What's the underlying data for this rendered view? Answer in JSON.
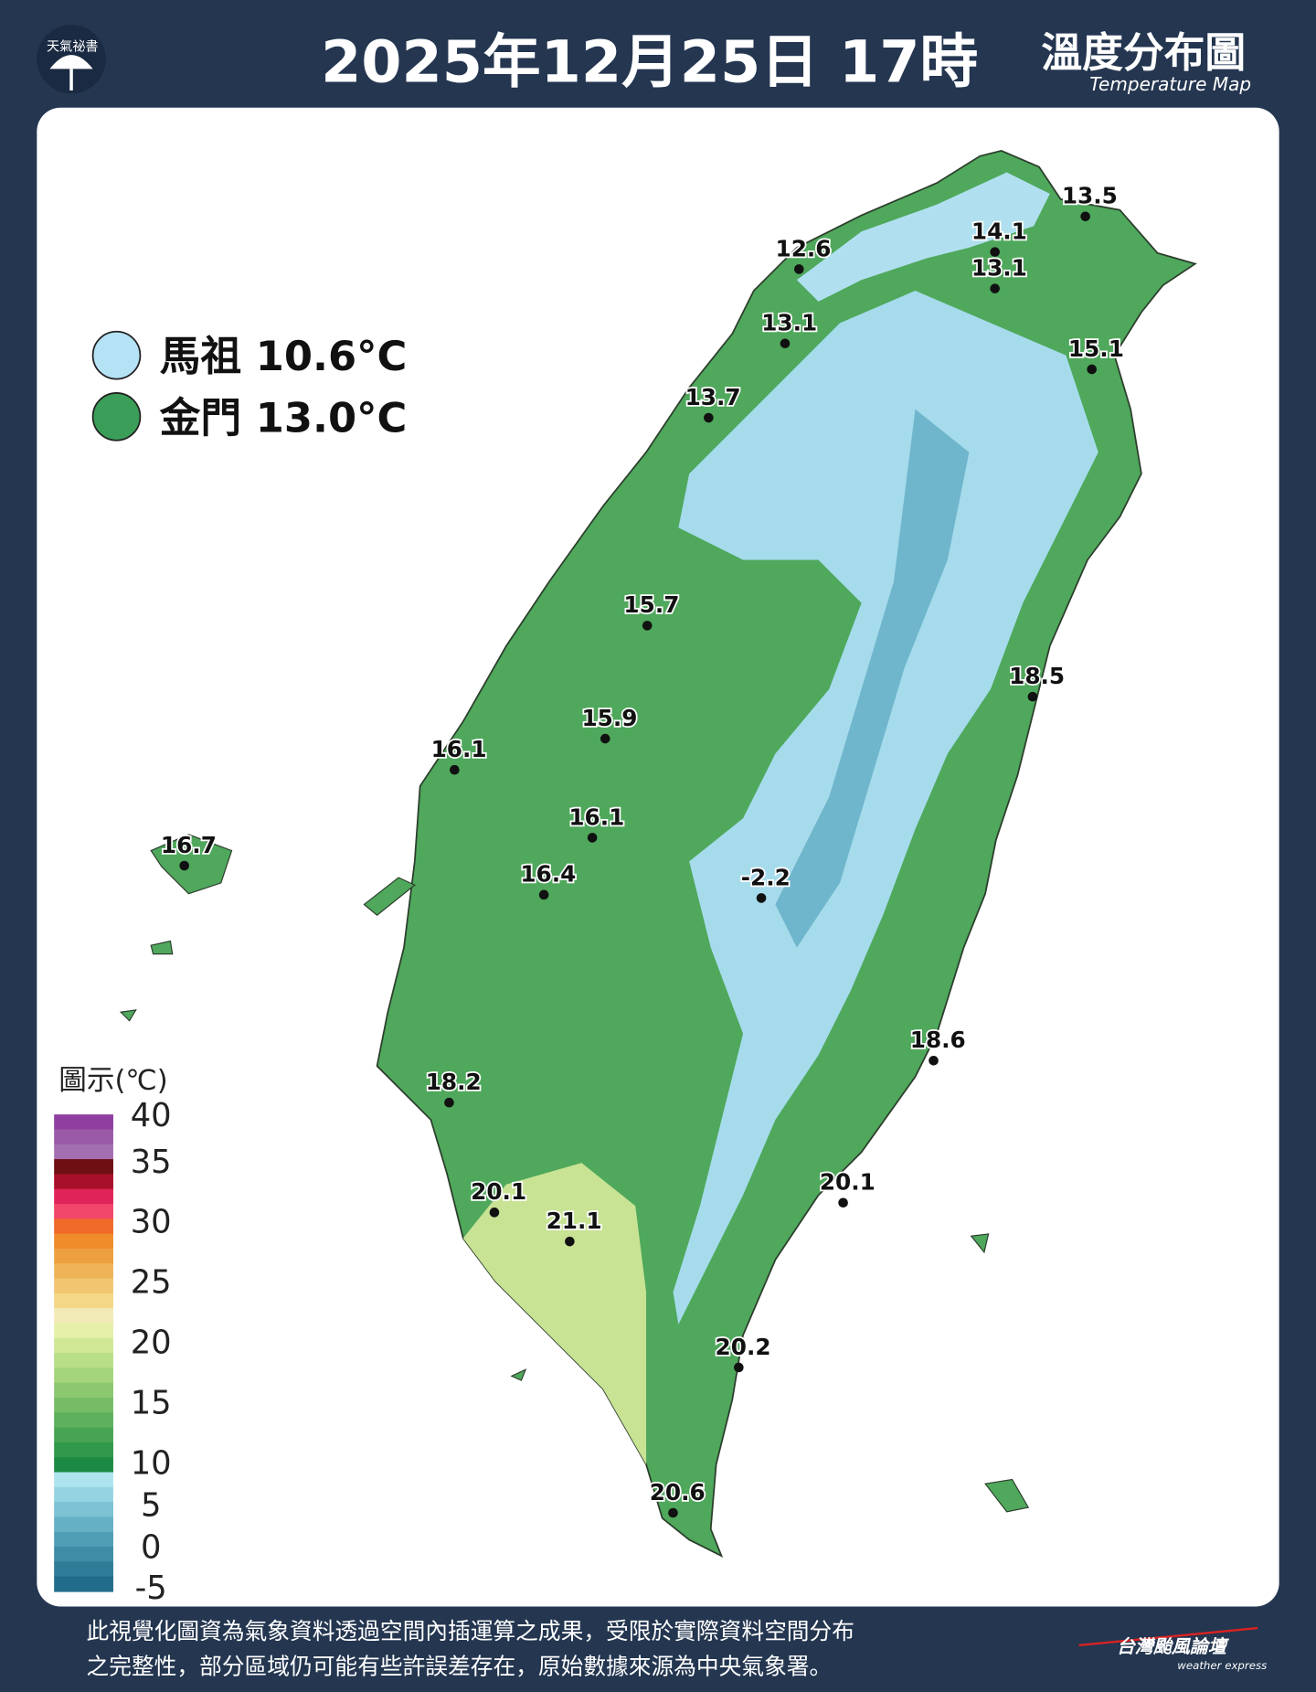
{
  "header": {
    "logo_text": "天氣祕書",
    "title": "2025年12月25日 17時",
    "subtitle_zh": "溫度分布圖",
    "subtitle_en": "Temperature Map"
  },
  "outlying_islands": [
    {
      "label": "馬祖 10.6°C",
      "color": "#b5e2f5"
    },
    {
      "label": "金門 13.0°C",
      "color": "#3a9e58"
    }
  ],
  "stations": [
    "13.5",
    "14.1",
    "12.6",
    "13.1",
    "13.1",
    "15.1",
    "13.7",
    "15.7",
    "18.5",
    "15.9",
    "16.1",
    "16.1",
    "16.7",
    "16.4",
    "-2.2",
    "18.6",
    "18.2",
    "20.1",
    "21.1",
    "20.1",
    "20.2",
    "20.6"
  ],
  "legend": {
    "title": "圖示(℃)",
    "tick_labels": [
      "40",
      "35",
      "30",
      "25",
      "20",
      "15",
      "10",
      "5",
      "0",
      "-5"
    ],
    "colors": [
      "#8e3fa0",
      "#9a5aa8",
      "#a46fb1",
      "#6e0f14",
      "#a8102a",
      "#e0245a",
      "#f2466a",
      "#f06a2a",
      "#f08c2a",
      "#eea040",
      "#f0b458",
      "#f2c670",
      "#f4d888",
      "#f2eab6",
      "#e6f0a8",
      "#d0e896",
      "#b8de86",
      "#a4d47c",
      "#8cc870",
      "#76bc66",
      "#5eb05c",
      "#48a454",
      "#32984c",
      "#1c8a42",
      "#aee4ee",
      "#94d4e2",
      "#7cc2d4",
      "#66b0c6",
      "#509eb6",
      "#3e8ca6",
      "#2e7c98",
      "#206c8a"
    ]
  },
  "footer": {
    "line1": "此視覺化圖資為氣象資料透過空間內插運算之成果，受限於實際資料空間分布",
    "line2": "之完整性，部分區域仍可能有些許誤差存在，原始數據來源為中央氣象署。",
    "brand": "台灣颱風論壇",
    "brand_en": "weather express"
  }
}
